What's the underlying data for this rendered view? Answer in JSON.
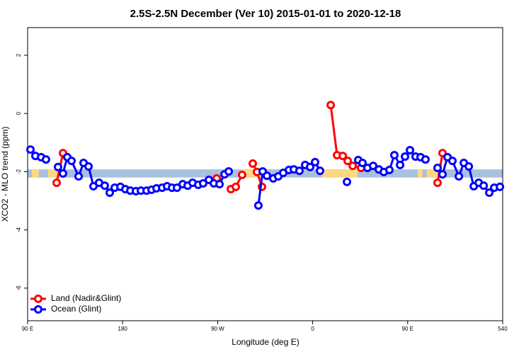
{
  "chart_data": {
    "type": "line",
    "title": "2.5S-2.5N December (Ver 10)   2015-01-01 to 2020-12-18",
    "x_label": "Longitude (deg E)",
    "y_label": "XCO2 - MLO trend (ppm)",
    "xlim": [
      90,
      540
    ],
    "ylim": [
      -7.12,
      2.95
    ],
    "xticks": [
      {
        "value": 90,
        "label": "90 E"
      },
      180,
      {
        "value": 270,
        "label": "90 W"
      },
      {
        "value": 360,
        "label": "0"
      },
      {
        "value": 450,
        "label": "90 E"
      },
      540
    ],
    "yticks": [
      2,
      0,
      -2,
      -4,
      -6
    ],
    "legend": "bottom-left",
    "band": {
      "ylim": [
        -1.92,
        -2.2
      ],
      "color": "#a9c0df",
      "land_color": "#fdd882",
      "land": [
        [
          94,
          100.7
        ],
        [
          109.4,
          122.9
        ],
        [
          291.9,
          315.3
        ],
        [
          369,
          402.5
        ],
        [
          459.5,
          464
        ],
        [
          468,
          479.6
        ]
      ]
    },
    "series": [
      {
        "name": "Land (Nadir&Glint)",
        "color": "#ff0000",
        "x": [
          117.5,
          123.5,
          null,
          269.1,
          null,
          282.5,
          287.2,
          293.2,
          null,
          303.3,
          307.3,
          312.0,
          null,
          377.1,
          383.1,
          388.5,
          393.2,
          397.9,
          405.9,
          null,
          478.3,
          483.0
        ],
        "values": [
          -2.38,
          -1.36,
          null,
          -2.23,
          null,
          -2.6,
          -2.52,
          -2.11,
          null,
          -1.72,
          -2.01,
          -2.52,
          null,
          0.29,
          -1.43,
          -1.46,
          -1.63,
          -1.8,
          -1.87,
          null,
          -2.38,
          -1.36
        ]
      },
      {
        "name": "Ocean (Glint)",
        "color": "#0000ff",
        "x": [
          92.7,
          97.4,
          102.8,
          107.4,
          null,
          118.8,
          123.5,
          127.6,
          131.6,
          138.3,
          143.0,
          147.7,
          152.4,
          157.7,
          163.1,
          167.8,
          172.5,
          177.9,
          182.6,
          187.3,
          192.6,
          197.3,
          202.7,
          207.4,
          212.1,
          217.4,
          222.1,
          226.8,
          231.5,
          236.9,
          241.6,
          246.3,
          251.6,
          256.3,
          261.7,
          266.4,
          271.8,
          276.5,
          280.5,
          null,
          308.6,
          312.7,
          316.7,
          322.7,
          327.4,
          332.1,
          337.5,
          342.2,
          347.5,
          352.9,
          357.6,
          362.3,
          367.0,
          null,
          392.5,
          null,
          403.2,
          407.2,
          411.9,
          417.3,
          422.7,
          427.4,
          432.7,
          437.4,
          442.8,
          447.5,
          452.2,
          457.5,
          462.2,
          466.9,
          null,
          478.3,
          483.0,
          487.7,
          492.4,
          498.5,
          503.2,
          507.9,
          512.6,
          517.3,
          522.0,
          527.3,
          532.0,
          537.4
        ],
        "values": [
          -1.24,
          -1.46,
          -1.5,
          -1.58,
          null,
          -1.84,
          -2.06,
          -1.5,
          -1.63,
          -2.16,
          -1.7,
          -1.82,
          -2.5,
          -2.38,
          -2.48,
          -2.72,
          -2.55,
          -2.52,
          -2.6,
          -2.65,
          -2.67,
          -2.65,
          -2.65,
          -2.62,
          -2.57,
          -2.55,
          -2.5,
          -2.55,
          -2.55,
          -2.43,
          -2.48,
          -2.38,
          -2.45,
          -2.4,
          -2.28,
          -2.4,
          -2.43,
          -2.09,
          -1.99,
          null,
          -3.16,
          -1.99,
          -2.14,
          -2.23,
          -2.16,
          -2.04,
          -1.94,
          -1.92,
          -1.97,
          -1.77,
          -1.84,
          -1.67,
          -1.97,
          null,
          -2.35,
          null,
          -1.6,
          -1.7,
          -1.87,
          -1.8,
          -1.92,
          -2.01,
          -1.94,
          -1.43,
          -1.77,
          -1.48,
          -1.26,
          -1.48,
          -1.5,
          -1.58,
          null,
          -1.87,
          -2.09,
          -1.5,
          -1.63,
          -2.16,
          -1.7,
          -1.82,
          -2.5,
          -2.38,
          -2.48,
          -2.72,
          -2.55,
          -2.52
        ]
      }
    ]
  }
}
